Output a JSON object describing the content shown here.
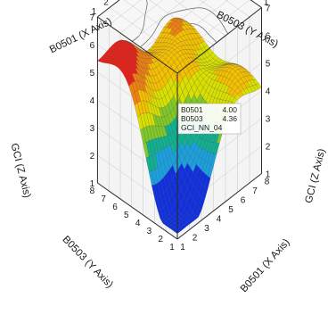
{
  "chart_data": {
    "type": "surface",
    "title": "",
    "x_axis": {
      "label": "B0501 (X Axis)",
      "ticks": [
        1,
        2,
        3,
        4,
        5,
        6,
        7,
        8
      ],
      "range": [
        1,
        8
      ]
    },
    "y_axis": {
      "label": "B0503 (Y Axis)",
      "ticks": [
        1,
        2,
        3,
        4,
        5,
        6,
        7,
        8
      ],
      "range": [
        1,
        8
      ]
    },
    "z_axis": {
      "label": "GCI (Z Axis)",
      "ticks": [
        1,
        2,
        3,
        4,
        5,
        6,
        7
      ],
      "range": [
        1,
        7
      ]
    },
    "colormap": [
      "#1030e0",
      "#1aa0dc",
      "#10b090",
      "#80c828",
      "#d8e000",
      "#f4c000",
      "#f08010",
      "#e82018"
    ],
    "projected_contours_on_top": true,
    "grid": true,
    "tooltip": {
      "rows": [
        {
          "key": "B0501",
          "value": "4.00"
        },
        {
          "key": "B0503",
          "value": "4.36"
        },
        {
          "key": "GCI_NN_04",
          "value": ""
        }
      ]
    }
  }
}
